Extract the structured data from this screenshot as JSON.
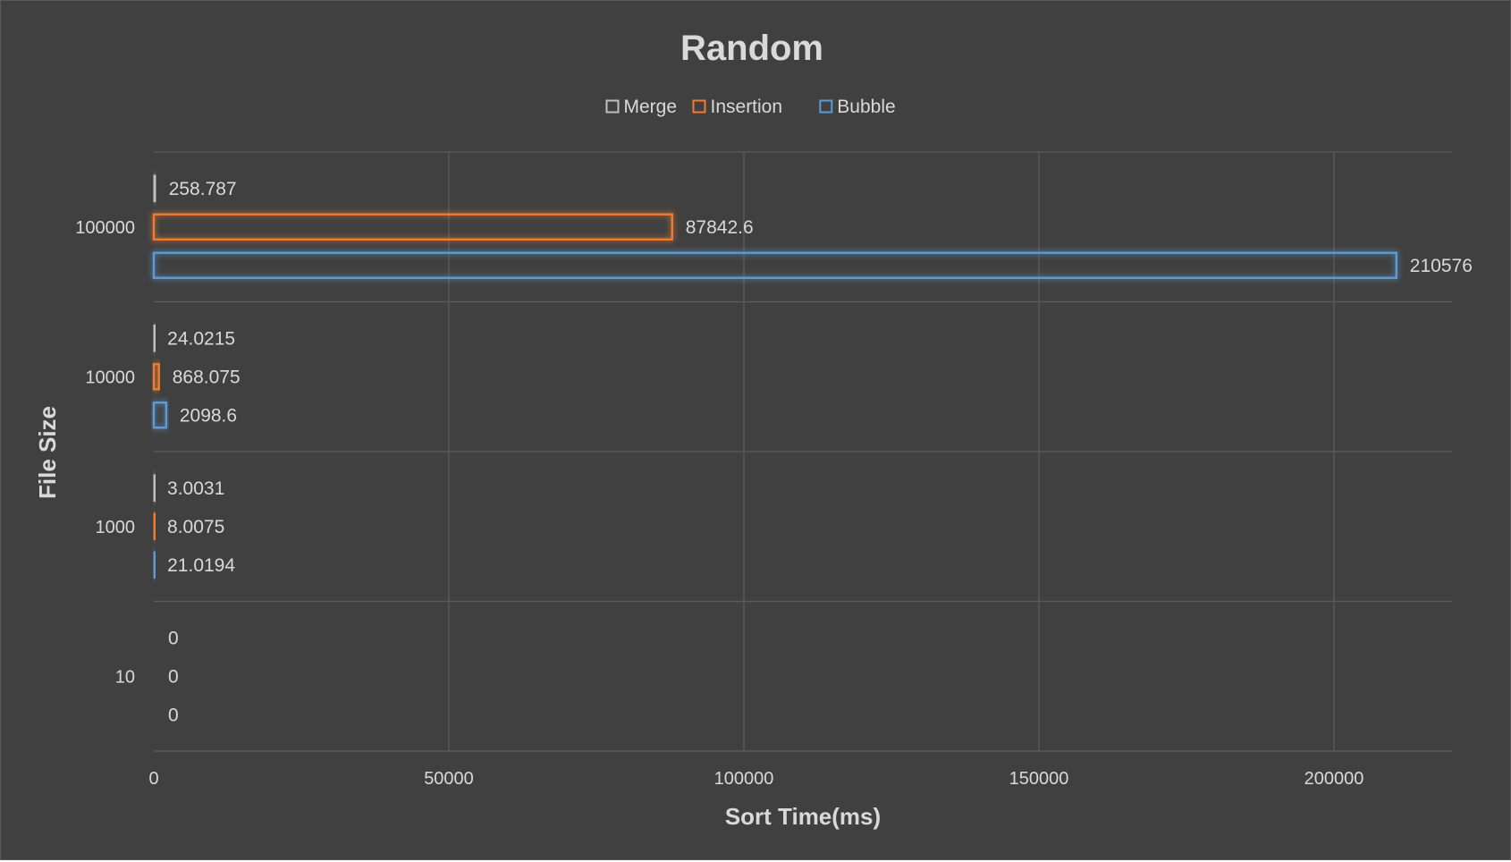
{
  "chart_data": {
    "type": "bar",
    "orientation": "horizontal",
    "title": "Random",
    "xlabel": "Sort Time(ms)",
    "ylabel": "File Size",
    "categories": [
      "100000",
      "10000",
      "1000",
      "10"
    ],
    "series": [
      {
        "name": "Merge",
        "color": "#bfbfbf",
        "values": [
          258.787,
          24.0215,
          3.0031,
          0
        ]
      },
      {
        "name": "Insertion",
        "color": "#ed7d31",
        "values": [
          87842.6,
          868.075,
          8.0075,
          0
        ]
      },
      {
        "name": "Bubble",
        "color": "#5b9bd5",
        "values": [
          210576,
          2098.6,
          21.0194,
          0
        ]
      }
    ],
    "data_labels": [
      [
        "258.787",
        "24.0215",
        "3.0031",
        "0"
      ],
      [
        "87842.6",
        "868.075",
        "8.0075",
        "0"
      ],
      [
        "210576",
        "2098.6",
        "21.0194",
        "0"
      ]
    ],
    "xlim": [
      0,
      220000
    ],
    "xticks": [
      0,
      50000,
      100000,
      150000,
      200000
    ],
    "xtick_labels": [
      "0",
      "50000",
      "100000",
      "150000",
      "200000"
    ],
    "grid": true,
    "legend_position": "top",
    "bar_style": "outline-glow",
    "background_color": "#404040"
  }
}
